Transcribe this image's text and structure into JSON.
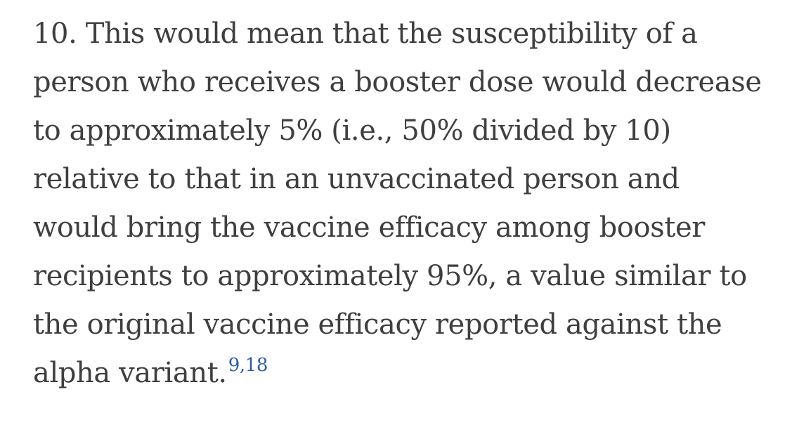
{
  "paragraph": {
    "lines": [
      "10. This would mean that the susceptibility of a",
      "person who receives a booster dose would decrease",
      "to approximately 5% (i.e., 50% divided by 10)",
      "relative to that in an unvaccinated person and",
      "would bring the vaccine efficacy among booster",
      "recipients to approximately 95%, a value similar to",
      "the original vaccine efficacy reported against the",
      "alpha variant."
    ],
    "citation": "9,18"
  },
  "colors": {
    "text": "#3f3f3f",
    "link": "#2c5da3",
    "background": "#ffffff"
  }
}
